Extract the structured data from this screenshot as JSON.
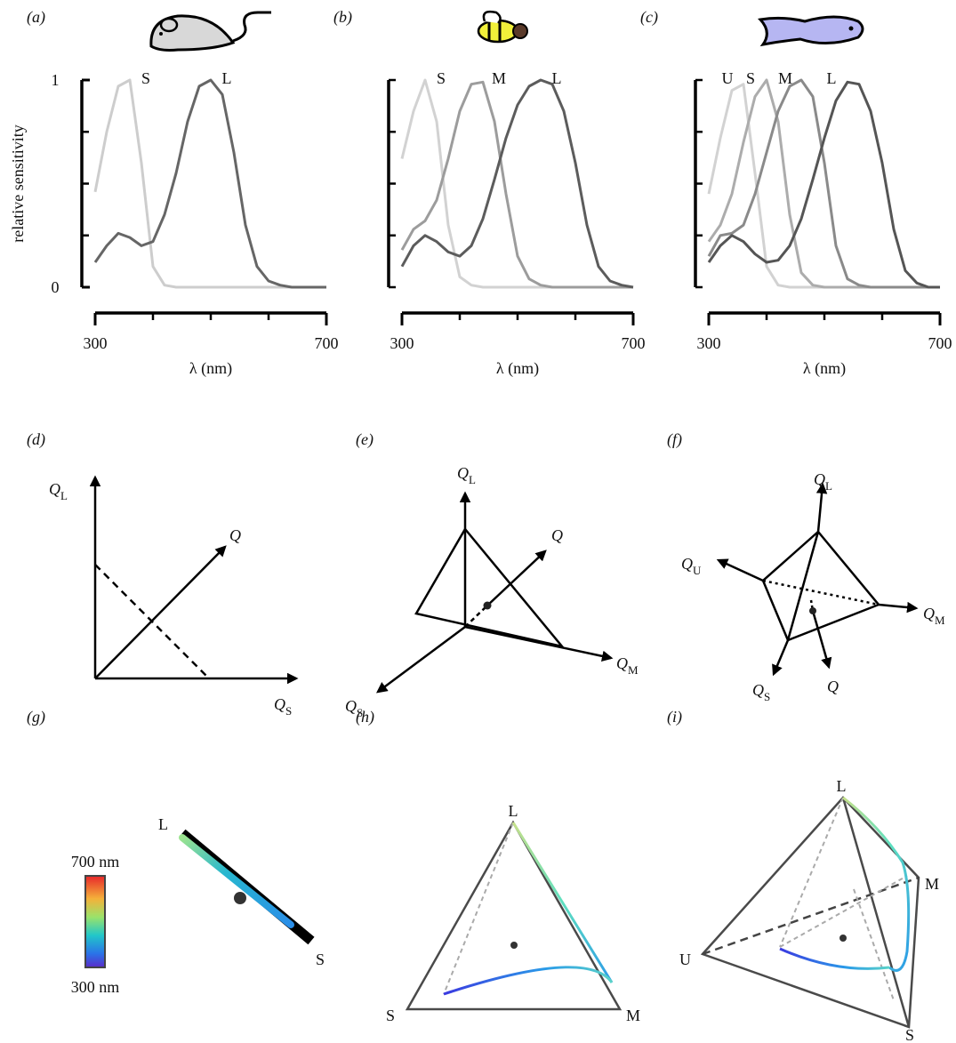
{
  "chart_data": [
    {
      "type": "line",
      "label": "(a)",
      "ylabel": "relative sensitivity",
      "xlabel": "λ (nm)",
      "x": [
        300,
        320,
        340,
        360,
        380,
        400,
        420,
        440,
        460,
        480,
        500,
        520,
        540,
        560,
        580,
        600,
        620,
        640,
        660,
        680,
        700
      ],
      "series": [
        {
          "name": "S",
          "color": "#cdcdcd",
          "values": [
            0.46,
            0.75,
            0.97,
            1.0,
            0.6,
            0.1,
            0.01,
            0,
            0,
            0,
            0,
            0,
            0,
            0,
            0,
            0,
            0,
            0,
            0,
            0,
            0
          ]
        },
        {
          "name": "L",
          "color": "#666666",
          "values": [
            0.12,
            0.2,
            0.26,
            0.24,
            0.2,
            0.22,
            0.35,
            0.55,
            0.8,
            0.97,
            1.0,
            0.93,
            0.65,
            0.3,
            0.1,
            0.03,
            0.01,
            0,
            0,
            0,
            0
          ]
        }
      ],
      "xlim": [
        300,
        700
      ],
      "ylim": [
        0,
        1
      ],
      "xticks": [
        300,
        700
      ],
      "xunlabeledticks": [
        400,
        500,
        600
      ],
      "yticks": [
        0,
        1
      ],
      "yunlabeledticks": [
        0.25,
        0.5,
        0.75
      ]
    },
    {
      "type": "line",
      "label": "(b)",
      "xlabel": "λ (nm)",
      "x": [
        300,
        320,
        340,
        360,
        380,
        400,
        420,
        440,
        460,
        480,
        500,
        520,
        540,
        560,
        580,
        600,
        620,
        640,
        660,
        680,
        700
      ],
      "series": [
        {
          "name": "S",
          "color": "#d2d2d2",
          "values": [
            0.62,
            0.85,
            1.0,
            0.8,
            0.3,
            0.05,
            0.01,
            0,
            0,
            0,
            0,
            0,
            0,
            0,
            0,
            0,
            0,
            0,
            0,
            0,
            0
          ]
        },
        {
          "name": "M",
          "color": "#9c9c9c",
          "values": [
            0.18,
            0.28,
            0.32,
            0.42,
            0.62,
            0.85,
            0.98,
            0.99,
            0.8,
            0.45,
            0.15,
            0.04,
            0.01,
            0,
            0,
            0,
            0,
            0,
            0,
            0,
            0
          ]
        },
        {
          "name": "L",
          "color": "#5c5c5c",
          "values": [
            0.1,
            0.2,
            0.25,
            0.22,
            0.17,
            0.15,
            0.2,
            0.33,
            0.52,
            0.72,
            0.88,
            0.97,
            1.0,
            0.98,
            0.85,
            0.6,
            0.3,
            0.1,
            0.03,
            0.01,
            0
          ]
        }
      ],
      "xlim": [
        300,
        700
      ],
      "ylim": [
        0,
        1
      ],
      "xticks": [
        300,
        700
      ],
      "xunlabeledticks": [
        400,
        500,
        600
      ],
      "yunlabeledticks": [
        0,
        0.25,
        0.5,
        0.75,
        1
      ]
    },
    {
      "type": "line",
      "label": "(c)",
      "xlabel": "λ (nm)",
      "x": [
        300,
        320,
        340,
        360,
        380,
        400,
        420,
        440,
        460,
        480,
        500,
        520,
        540,
        560,
        580,
        600,
        620,
        640,
        660,
        680,
        700
      ],
      "series": [
        {
          "name": "U",
          "color": "#d2d2d2",
          "values": [
            0.45,
            0.72,
            0.95,
            0.98,
            0.55,
            0.1,
            0.01,
            0,
            0,
            0,
            0,
            0,
            0,
            0,
            0,
            0,
            0,
            0,
            0,
            0,
            0
          ]
        },
        {
          "name": "S",
          "color": "#acacac",
          "values": [
            0.22,
            0.3,
            0.45,
            0.7,
            0.92,
            1.0,
            0.8,
            0.35,
            0.07,
            0.01,
            0,
            0,
            0,
            0,
            0,
            0,
            0,
            0,
            0,
            0,
            0
          ]
        },
        {
          "name": "M",
          "color": "#8a8a8a",
          "values": [
            0.15,
            0.25,
            0.26,
            0.3,
            0.45,
            0.65,
            0.85,
            0.97,
            1.0,
            0.92,
            0.6,
            0.2,
            0.04,
            0.01,
            0,
            0,
            0,
            0,
            0,
            0,
            0
          ]
        },
        {
          "name": "L",
          "color": "#555555",
          "values": [
            0.12,
            0.2,
            0.25,
            0.22,
            0.16,
            0.12,
            0.13,
            0.2,
            0.33,
            0.52,
            0.72,
            0.9,
            0.99,
            0.98,
            0.85,
            0.6,
            0.28,
            0.08,
            0.02,
            0,
            0
          ]
        }
      ],
      "xlim": [
        300,
        700
      ],
      "ylim": [
        0,
        1
      ],
      "xticks": [
        300,
        700
      ],
      "xunlabeledticks": [
        400,
        500,
        600
      ],
      "yunlabeledticks": [
        0,
        0.25,
        0.5,
        0.75,
        1
      ]
    }
  ],
  "diagrams": [
    {
      "label": "(d)",
      "axes": [
        {
          "symbol": "Q",
          "subscript": "L"
        },
        {
          "symbol": "Q",
          "subscript": "S"
        }
      ],
      "vector": "Q"
    },
    {
      "label": "(e)",
      "axes": [
        {
          "symbol": "Q",
          "subscript": "L"
        },
        {
          "symbol": "Q",
          "subscript": "S"
        },
        {
          "symbol": "Q",
          "subscript": "M"
        }
      ],
      "vector": "Q"
    },
    {
      "label": "(f)",
      "axes": [
        {
          "symbol": "Q",
          "subscript": "L"
        },
        {
          "symbol": "Q",
          "subscript": "U"
        },
        {
          "symbol": "Q",
          "subscript": "M"
        },
        {
          "symbol": "Q",
          "subscript": "S"
        }
      ],
      "vector": "Q"
    }
  ],
  "simplices": [
    {
      "label": "(g)",
      "vertices": [
        "L",
        "S"
      ],
      "colorbar": [
        "700 nm",
        "300 nm"
      ]
    },
    {
      "label": "(h)",
      "vertices": [
        "L",
        "S",
        "M"
      ]
    },
    {
      "label": "(i)",
      "vertices": [
        "L",
        "M",
        "U",
        "S"
      ]
    }
  ]
}
